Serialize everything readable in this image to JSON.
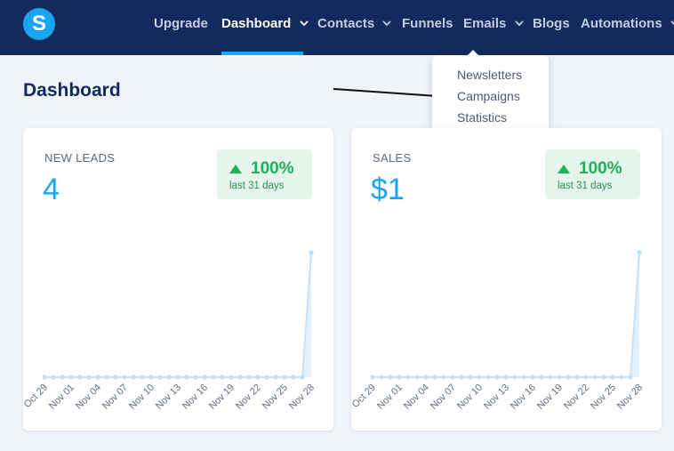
{
  "navbar": {
    "logo_letter": "S",
    "items": [
      {
        "label": "Upgrade",
        "has_caret": false,
        "active": false
      },
      {
        "label": "Dashboard",
        "has_caret": true,
        "active": true
      },
      {
        "label": "Contacts",
        "has_caret": true,
        "active": false
      },
      {
        "label": "Funnels",
        "has_caret": false,
        "active": false
      },
      {
        "label": "Emails",
        "has_caret": true,
        "active": false
      },
      {
        "label": "Blogs",
        "has_caret": false,
        "active": false
      },
      {
        "label": "Automations",
        "has_caret": true,
        "active": false
      }
    ]
  },
  "emails_dropdown": {
    "items": [
      "Newsletters",
      "Campaigns",
      "Statistics"
    ]
  },
  "page": {
    "title": "Dashboard"
  },
  "colors": {
    "navbar": "#132a5e",
    "accent": "#1aa5f0",
    "positive": "#20b05a",
    "badge_bg": "#e4f6ec"
  },
  "cards": [
    {
      "label": "NEW LEADS",
      "value": "4",
      "change": "100%",
      "change_icon": "triangle-up-icon",
      "period": "last 31 days",
      "chart_data": {
        "type": "line",
        "x": [
          "Oct 29",
          "Oct 30",
          "Oct 31",
          "Nov 01",
          "Nov 02",
          "Nov 03",
          "Nov 04",
          "Nov 05",
          "Nov 06",
          "Nov 07",
          "Nov 08",
          "Nov 09",
          "Nov 10",
          "Nov 11",
          "Nov 12",
          "Nov 13",
          "Nov 14",
          "Nov 15",
          "Nov 16",
          "Nov 17",
          "Nov 18",
          "Nov 19",
          "Nov 20",
          "Nov 21",
          "Nov 22",
          "Nov 23",
          "Nov 24",
          "Nov 25",
          "Nov 26",
          "Nov 27",
          "Nov 28"
        ],
        "tick_labels": [
          "Oct 29",
          "Nov 01",
          "Nov 04",
          "Nov 07",
          "Nov 10",
          "Nov 13",
          "Nov 16",
          "Nov 19",
          "Nov 22",
          "Nov 25",
          "Nov 28"
        ],
        "series": [
          {
            "values": [
              0,
              0,
              0,
              0,
              0,
              0,
              0,
              0,
              0,
              0,
              0,
              0,
              0,
              0,
              0,
              0,
              0,
              0,
              0,
              0,
              0,
              0,
              0,
              0,
              0,
              0,
              0,
              0,
              0,
              0,
              4
            ]
          }
        ]
      }
    },
    {
      "label": "SALES",
      "value": "$1",
      "change": "100%",
      "change_icon": "triangle-up-icon",
      "period": "last 31 days",
      "chart_data": {
        "type": "line",
        "x": [
          "Oct 29",
          "Oct 30",
          "Oct 31",
          "Nov 01",
          "Nov 02",
          "Nov 03",
          "Nov 04",
          "Nov 05",
          "Nov 06",
          "Nov 07",
          "Nov 08",
          "Nov 09",
          "Nov 10",
          "Nov 11",
          "Nov 12",
          "Nov 13",
          "Nov 14",
          "Nov 15",
          "Nov 16",
          "Nov 17",
          "Nov 18",
          "Nov 19",
          "Nov 20",
          "Nov 21",
          "Nov 22",
          "Nov 23",
          "Nov 24",
          "Nov 25",
          "Nov 26",
          "Nov 27",
          "Nov 28"
        ],
        "tick_labels": [
          "Oct 29",
          "Nov 01",
          "Nov 04",
          "Nov 07",
          "Nov 10",
          "Nov 13",
          "Nov 16",
          "Nov 19",
          "Nov 22",
          "Nov 25",
          "Nov 28"
        ],
        "series": [
          {
            "values": [
              0,
              0,
              0,
              0,
              0,
              0,
              0,
              0,
              0,
              0,
              0,
              0,
              0,
              0,
              0,
              0,
              0,
              0,
              0,
              0,
              0,
              0,
              0,
              0,
              0,
              0,
              0,
              0,
              0,
              0,
              1
            ]
          }
        ]
      }
    }
  ]
}
